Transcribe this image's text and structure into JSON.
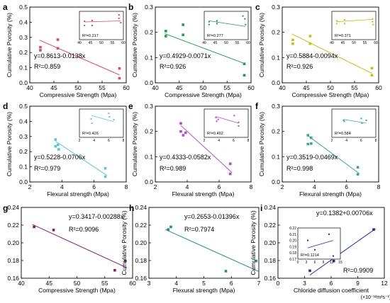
{
  "chart_data": [
    {
      "panel": "a",
      "type": "scatter",
      "xlabel": "Compressive Strength (Mpa)",
      "ylabel": "Cumulative Porosity (%)",
      "xlim": [
        40,
        60
      ],
      "ylim": [
        0,
        0.5
      ],
      "xticks": [
        40,
        45,
        50,
        55,
        60
      ],
      "yticks": [
        0.0,
        0.1,
        0.2,
        0.3,
        0.4,
        0.5
      ],
      "color": "#e0457c",
      "points": [
        [
          42.2,
          0.235
        ],
        [
          42.2,
          0.215
        ],
        [
          45.8,
          0.285
        ],
        [
          45.8,
          0.228
        ],
        [
          58.6,
          0.095
        ],
        [
          58.6,
          0.03
        ]
      ],
      "fit": {
        "intercept": 0.8613,
        "slope": -0.0138,
        "x_range": [
          42,
          58.6
        ]
      },
      "equation": "y=0.8613-0.0138x",
      "r2": "R²=0.859",
      "inset": {
        "xlim": [
          40,
          60
        ],
        "ylim": [
          0,
          0.4
        ],
        "xticks": [
          40,
          45,
          50,
          55,
          60
        ],
        "points": [
          [
            42.3,
            0.26
          ],
          [
            42.3,
            0.2
          ],
          [
            45.8,
            0.27
          ],
          [
            45.8,
            0.2
          ],
          [
            58,
            0.35
          ],
          [
            58,
            0.3
          ],
          [
            58.8,
            0.24
          ]
        ],
        "fit": {
          "y_start": 0.25,
          "y_end": 0.265
        },
        "r2": "R²=0.217"
      }
    },
    {
      "panel": "b",
      "type": "scatter",
      "xlabel": "Compressive Strength (Mpa)",
      "ylabel": "Cumulative Porosity (%)",
      "xlim": [
        40,
        60
      ],
      "ylim": [
        0,
        0.3
      ],
      "xticks": [
        40,
        45,
        50,
        55,
        60
      ],
      "yticks": [
        0.0,
        0.1,
        0.2,
        0.3
      ],
      "color": "#1f9e4a",
      "points": [
        [
          42.2,
          0.205
        ],
        [
          42.2,
          0.185
        ],
        [
          45.8,
          0.23
        ],
        [
          45.8,
          0.19
        ],
        [
          58.6,
          0.075
        ],
        [
          58.6,
          0.03
        ]
      ],
      "fit": {
        "intercept": 0.4929,
        "slope": -0.0071,
        "x_range": [
          42,
          58.6
        ]
      },
      "equation": "y=0.4929-0.0071x",
      "r2": "R²=0.926",
      "inset": {
        "xlim": [
          40,
          60
        ],
        "ylim": [
          0,
          0.3
        ],
        "xticks": [
          40,
          45,
          50,
          55,
          60
        ],
        "points": [
          [
            42.2,
            0.19
          ],
          [
            42.2,
            0.16
          ],
          [
            45.8,
            0.2
          ],
          [
            45.8,
            0.17
          ],
          [
            57.6,
            0.25
          ],
          [
            58.5,
            0.22
          ],
          [
            58.8,
            0.16
          ]
        ],
        "fit": {
          "y_start": 0.2,
          "y_end": 0.14
        },
        "r2": "R²=0.277"
      }
    },
    {
      "panel": "c",
      "type": "scatter",
      "xlabel": "Compressive Strength (Mpa)",
      "ylabel": "Cumulative Porosity (%)",
      "xlim": [
        40,
        60
      ],
      "ylim": [
        0,
        0.3
      ],
      "xticks": [
        40,
        45,
        50,
        55,
        60
      ],
      "yticks": [
        0.0,
        0.1,
        0.2,
        0.3
      ],
      "color": "#c8bd17",
      "points": [
        [
          42.2,
          0.17
        ],
        [
          42.2,
          0.155
        ],
        [
          45.8,
          0.185
        ],
        [
          45.8,
          0.155
        ],
        [
          58.6,
          0.058
        ],
        [
          58.6,
          0.03
        ]
      ],
      "fit": {
        "intercept": 0.5884,
        "slope": -0.0094,
        "x_range": [
          42,
          58.6
        ]
      },
      "equation": "y=0.5884-0.0094x",
      "r2": "R²=0.926",
      "inset": {
        "xlim": [
          40,
          60
        ],
        "ylim": [
          0,
          0.3
        ],
        "xticks": [
          40,
          45,
          50,
          55,
          60
        ],
        "points": [
          [
            42.2,
            0.2
          ],
          [
            42.2,
            0.17
          ],
          [
            45.8,
            0.21
          ],
          [
            45.8,
            0.17
          ],
          [
            58.5,
            0.22
          ],
          [
            58.5,
            0.19
          ],
          [
            58.8,
            0.16
          ]
        ],
        "fit": {
          "y_start": 0.19,
          "y_end": 0.215
        },
        "r2": "R²=0.371"
      }
    },
    {
      "panel": "d",
      "type": "scatter",
      "xlabel": "Flexural strength (Mpa)",
      "ylabel": "Cumulative Porosity (%)",
      "xlim": [
        2,
        8
      ],
      "ylim": [
        0,
        0.5
      ],
      "xticks": [
        2,
        4,
        6,
        8
      ],
      "yticks": [
        0.0,
        0.1,
        0.2,
        0.3,
        0.4,
        0.5
      ],
      "color": "#5cc4d9",
      "points": [
        [
          3.6,
          0.28
        ],
        [
          3.6,
          0.235
        ],
        [
          3.75,
          0.245
        ],
        [
          3.8,
          0.215
        ],
        [
          6.7,
          0.09
        ],
        [
          6.7,
          0.035
        ]
      ],
      "fit": {
        "intercept": 0.5228,
        "slope": -0.0706,
        "x_range": [
          3.6,
          6.8
        ]
      },
      "equation": "y=0.5228-0.0706x",
      "r2": "R²=0.979",
      "inset": {
        "xlim": [
          2,
          8
        ],
        "ylim": [
          0,
          0.4
        ],
        "xticks": [
          2,
          4,
          6,
          8
        ],
        "points": [
          [
            3.6,
            0.26
          ],
          [
            3.7,
            0.2
          ],
          [
            6,
            0.34
          ],
          [
            6.1,
            0.29
          ],
          [
            6.7,
            0.25
          ]
        ],
        "fit": {
          "y_start": 0.31,
          "y_end": 0.22
        },
        "r2": "R²=0.426"
      }
    },
    {
      "panel": "e",
      "type": "scatter",
      "xlabel": "Flexural strength (Mpa)",
      "ylabel": "Cumulative Porosity (%)",
      "xlim": [
        2,
        8
      ],
      "ylim": [
        0,
        0.3
      ],
      "xticks": [
        2,
        4,
        6,
        8
      ],
      "yticks": [
        0.0,
        0.1,
        0.2,
        0.3
      ],
      "color": "#b648d6",
      "points": [
        [
          3.6,
          0.232
        ],
        [
          3.6,
          0.2
        ],
        [
          3.75,
          0.185
        ],
        [
          3.9,
          0.195
        ],
        [
          6.7,
          0.072
        ],
        [
          6.7,
          0.032
        ]
      ],
      "fit": {
        "intercept": 0.4333,
        "slope": -0.0582,
        "x_range": [
          3.6,
          6.8
        ]
      },
      "equation": "y=0.4333-0.0582x",
      "r2": "R²=0.989",
      "inset": {
        "xlim": [
          2,
          8
        ],
        "ylim": [
          0,
          0.3
        ],
        "xticks": [
          2,
          4,
          6,
          8
        ],
        "points": [
          [
            3.6,
            0.21
          ],
          [
            3.7,
            0.17
          ],
          [
            3.9,
            0.19
          ],
          [
            6.1,
            0.23
          ],
          [
            6.7,
            0.16
          ],
          [
            6.7,
            0.12
          ]
        ],
        "fit": {
          "y_start": 0.22,
          "y_end": 0.15
        },
        "r2": "R²=0.492"
      }
    },
    {
      "panel": "f",
      "type": "scatter",
      "xlabel": "Flexural strength (Mpa)",
      "ylabel": "Cumulative Porosity (%)",
      "xlim": [
        2,
        8
      ],
      "ylim": [
        0,
        0.3
      ],
      "xticks": [
        2,
        4,
        6,
        8
      ],
      "yticks": [
        0.0,
        0.1,
        0.2,
        0.3
      ],
      "color": "#3aa69a",
      "points": [
        [
          3.6,
          0.185
        ],
        [
          3.6,
          0.15
        ],
        [
          3.8,
          0.175
        ],
        [
          3.8,
          0.152
        ],
        [
          6.7,
          0.058
        ],
        [
          6.7,
          0.03
        ]
      ],
      "fit": {
        "intercept": 0.3519,
        "slope": -0.0469,
        "x_range": [
          3.6,
          6.8
        ]
      },
      "equation": "y=0.3519-0.0469x",
      "r2": "R²=0.998",
      "inset": {
        "xlim": [
          2,
          8
        ],
        "ylim": [
          0,
          0.3
        ],
        "xticks": [
          2,
          4,
          6,
          8
        ],
        "points": [
          [
            3.6,
            0.18
          ],
          [
            3.7,
            0.17
          ],
          [
            6,
            0.2
          ],
          [
            6.1,
            0.15
          ],
          [
            6.7,
            0.18
          ]
        ],
        "fit": {
          "y_start": 0.19,
          "y_end": 0.15
        },
        "r2": "R²=0.584"
      }
    },
    {
      "panel": "g",
      "type": "scatter",
      "xlabel": "Compressive Strength (Mpa)",
      "ylabel": "Cumulative Porosity (%)",
      "xlim": [
        40,
        60
      ],
      "ylim": [
        0.16,
        0.24
      ],
      "xticks": [
        40,
        45,
        50,
        55,
        60
      ],
      "yticks": [
        0.16,
        0.18,
        0.2,
        0.22,
        0.24
      ],
      "color": "#8a1a6b",
      "points": [
        [
          42.3,
          0.218
        ],
        [
          45.8,
          0.2145
        ],
        [
          56.8,
          0.169
        ],
        [
          58.7,
          0.1795
        ]
      ],
      "fit": {
        "intercept": 0.3417,
        "slope": -0.00288,
        "x_range": [
          42,
          59
        ]
      },
      "equation": "y=0.3417-0.00288x",
      "r2": "R²=0.9096"
    },
    {
      "panel": "h",
      "type": "scatter",
      "xlabel": "Flexural strength (Mpa)",
      "ylabel": "Cumulative Porosity (%)",
      "xlim": [
        3,
        7
      ],
      "ylim": [
        0.16,
        0.24
      ],
      "xticks": [
        3,
        4,
        5,
        6,
        7
      ],
      "yticks": [
        0.16,
        0.18,
        0.2,
        0.22,
        0.24
      ],
      "color": "#1f8f85",
      "points": [
        [
          3.7,
          0.215
        ],
        [
          3.8,
          0.218
        ],
        [
          5.8,
          0.168
        ],
        [
          6.9,
          0.1795
        ]
      ],
      "fit": {
        "intercept": 0.2653,
        "slope": -0.01396,
        "x_range": [
          3.6,
          7
        ]
      },
      "equation": "y=0.2653-0.01396x",
      "r2": "R²=0.7974"
    },
    {
      "panel": "i",
      "type": "scatter",
      "xlabel": "Chloride diffusion coefficient",
      "xunit": "(×10⁻¹²m²s⁻¹)",
      "ylabel": "Cumulative Porosity (%)",
      "xlim": [
        0,
        12
      ],
      "ylim": [
        0.16,
        0.24
      ],
      "xticks": [
        0,
        3,
        6,
        9,
        12
      ],
      "yticks": [
        0.16,
        0.18,
        0.2,
        0.22,
        0.24
      ],
      "color": "#1f2fa6",
      "points": [
        [
          3.6,
          0.1685
        ],
        [
          6.3,
          0.1795
        ],
        [
          10.8,
          0.215
        ]
      ],
      "fit": {
        "intercept": 0.1382,
        "slope": 0.00706,
        "x_range": [
          3.6,
          11
        ]
      },
      "equation": "y=0.1382+0.00706x",
      "r2": "R²=0.9909",
      "inset": {
        "xlim": [
          0,
          15
        ],
        "ylim": [
          0.17,
          0.22
        ],
        "xticks": [
          0,
          3,
          6,
          9,
          12,
          15
        ],
        "yticks": [
          0.17,
          0.18,
          0.19,
          0.2,
          0.21,
          0.22
        ],
        "points": [
          [
            3.5,
            0.2
          ],
          [
            6,
            0.185
          ],
          [
            11,
            0.21
          ],
          [
            12.5,
            0.175
          ]
        ],
        "fit": {
          "y_start": 0.188,
          "y_end": 0.2
        },
        "r2": "R²=0.1214"
      }
    }
  ]
}
